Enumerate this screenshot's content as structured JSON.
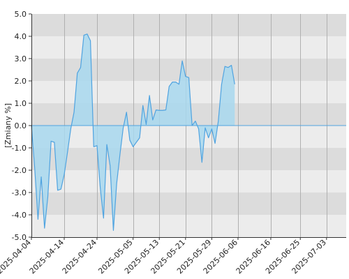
{
  "chart_data": {
    "type": "area",
    "title": "",
    "xlabel": "",
    "ylabel": "[Zmiany %]",
    "ylim": [
      -5.0,
      5.0
    ],
    "ytick_step": 1.0,
    "ytick_labels": [
      "5.0",
      "4.0",
      "3.0",
      "2.0",
      "1.0",
      "0.0",
      "-1.0",
      "-2.0",
      "-3.0",
      "-4.0",
      "-5.0"
    ],
    "xlim": [
      "2025-04-04",
      "2025-07-09"
    ],
    "xtick_labels": [
      "2025-04-04",
      "2025-04-14",
      "2025-04-24",
      "2025-05-05",
      "2025-05-13",
      "2025-05-21",
      "2025-05-29",
      "2025-06-06",
      "2025-06-16",
      "2025-06-25",
      "2025-07-03"
    ],
    "grid": true,
    "legend": "none",
    "colors": {
      "line": "#4fa3e0",
      "fill": "#a8d8ee",
      "band_dark": "#dcdcdc",
      "band_light": "#ececec",
      "vgrid": "#b0b0b0",
      "axis": "#333333"
    },
    "series": [
      {
        "points": [
          [
            "2025-04-04",
            0.0
          ],
          [
            "2025-04-05",
            -1.9
          ],
          [
            "2025-04-06",
            -4.2
          ],
          [
            "2025-04-07",
            -2.3
          ],
          [
            "2025-04-08",
            -4.6
          ],
          [
            "2025-04-09",
            -3.2
          ],
          [
            "2025-04-10",
            -0.7
          ],
          [
            "2025-04-11",
            -0.75
          ],
          [
            "2025-04-12",
            -2.9
          ],
          [
            "2025-04-13",
            -2.85
          ],
          [
            "2025-04-14",
            -2.2
          ],
          [
            "2025-04-15",
            -1.2
          ],
          [
            "2025-04-16",
            -0.15
          ],
          [
            "2025-04-17",
            0.6
          ],
          [
            "2025-04-18",
            2.35
          ],
          [
            "2025-04-19",
            2.6
          ],
          [
            "2025-04-20",
            4.05
          ],
          [
            "2025-04-21",
            4.1
          ],
          [
            "2025-04-22",
            3.8
          ],
          [
            "2025-04-23",
            -0.95
          ],
          [
            "2025-04-24",
            -0.9
          ],
          [
            "2025-04-25",
            -2.8
          ],
          [
            "2025-04-26",
            -4.15
          ],
          [
            "2025-04-27",
            -0.85
          ],
          [
            "2025-04-28",
            -1.8
          ],
          [
            "2025-04-29",
            -4.7
          ],
          [
            "2025-04-30",
            -2.6
          ],
          [
            "2025-05-01",
            -1.3
          ],
          [
            "2025-05-02",
            -0.1
          ],
          [
            "2025-05-03",
            0.6
          ],
          [
            "2025-05-04",
            -0.65
          ],
          [
            "2025-05-05",
            -0.95
          ],
          [
            "2025-05-06",
            -0.75
          ],
          [
            "2025-05-07",
            -0.55
          ],
          [
            "2025-05-08",
            0.9
          ],
          [
            "2025-05-09",
            0.05
          ],
          [
            "2025-05-10",
            1.35
          ],
          [
            "2025-05-11",
            0.25
          ],
          [
            "2025-05-12",
            0.7
          ],
          [
            "2025-05-13",
            0.68
          ],
          [
            "2025-05-14",
            0.68
          ],
          [
            "2025-05-15",
            0.7
          ],
          [
            "2025-05-16",
            1.75
          ],
          [
            "2025-05-17",
            1.95
          ],
          [
            "2025-05-18",
            1.95
          ],
          [
            "2025-05-19",
            1.85
          ],
          [
            "2025-05-20",
            2.9
          ],
          [
            "2025-05-21",
            2.2
          ],
          [
            "2025-05-22",
            2.15
          ],
          [
            "2025-05-23",
            0.0
          ],
          [
            "2025-05-24",
            0.2
          ],
          [
            "2025-05-25",
            -0.15
          ],
          [
            "2025-05-26",
            -1.65
          ],
          [
            "2025-05-27",
            -0.1
          ],
          [
            "2025-05-28",
            -0.55
          ],
          [
            "2025-05-29",
            -0.15
          ],
          [
            "2025-05-30",
            -0.8
          ],
          [
            "2025-05-31",
            0.2
          ],
          [
            "2025-06-01",
            1.85
          ],
          [
            "2025-06-02",
            2.65
          ],
          [
            "2025-06-03",
            2.6
          ],
          [
            "2025-06-04",
            2.7
          ],
          [
            "2025-06-05",
            1.85
          ]
        ]
      }
    ]
  }
}
